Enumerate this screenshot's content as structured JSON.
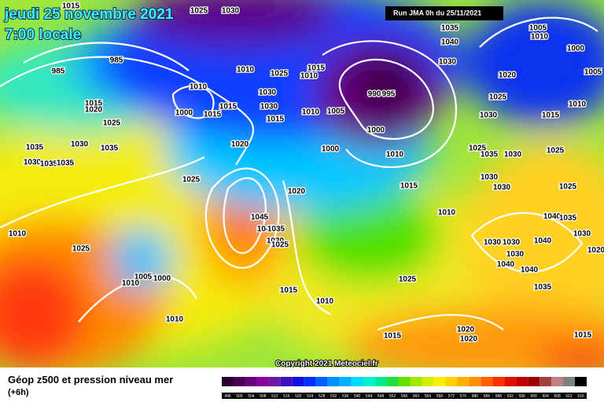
{
  "header": {
    "date": "jeudi 25 novembre 2021",
    "time": "7:00 locale",
    "run": "Run JMA 0h du 25/11/2021"
  },
  "footer": {
    "copyright": "Copyright 2021 Meteociel.fr",
    "caption": "Géop z500 et pression niveau mer",
    "lead_time": "(+6h)"
  },
  "isobar_labels": [
    1015,
    1025,
    1030,
    1035,
    1040,
    1005,
    1010,
    1000,
    1005,
    985,
    985,
    1030,
    1010,
    1025,
    1015,
    1010,
    1020,
    1025,
    1010,
    1030,
    1015,
    1020,
    990,
    995,
    1010,
    1000,
    1015,
    1015,
    1030,
    1010,
    1005,
    1015,
    1030,
    1015,
    1025,
    1000,
    1030,
    1035,
    1035,
    1020,
    1000,
    1010,
    1025,
    1035,
    1030,
    1025,
    1030,
    1035,
    1035,
    1025,
    1030,
    1020,
    1015,
    1030,
    1025,
    1010,
    1045,
    1040,
    1035,
    1040,
    1035,
    1010,
    1030,
    1030,
    1025,
    1030,
    1030,
    1040,
    1025,
    1030,
    1040,
    1040,
    1005,
    1000,
    1025,
    1010,
    1035,
    1015,
    1010,
    1010,
    1015,
    1020,
    1020,
    1015,
    1020
  ],
  "legend": {
    "values": [
      496,
      500,
      504,
      508,
      512,
      516,
      520,
      524,
      528,
      532,
      536,
      540,
      544,
      548,
      552,
      556,
      560,
      564,
      568,
      572,
      576,
      580,
      584,
      588,
      592,
      596,
      600,
      604,
      608,
      612,
      616
    ],
    "colors": [
      "#2a0030",
      "#4a0050",
      "#6a0080",
      "#8a00a0",
      "#6a1aa0",
      "#3a10c0",
      "#1010e0",
      "#0030ff",
      "#0060ff",
      "#0090ff",
      "#00b0ff",
      "#00d8ff",
      "#00f0d0",
      "#00e890",
      "#20e040",
      "#60e000",
      "#a0e800",
      "#d0f000",
      "#f8f000",
      "#ffd000",
      "#ffb000",
      "#ff9000",
      "#ff6000",
      "#ff3000",
      "#e01000",
      "#c00000",
      "#a00000",
      "#a04040",
      "#c08080",
      "#808080",
      "#000000"
    ]
  }
}
